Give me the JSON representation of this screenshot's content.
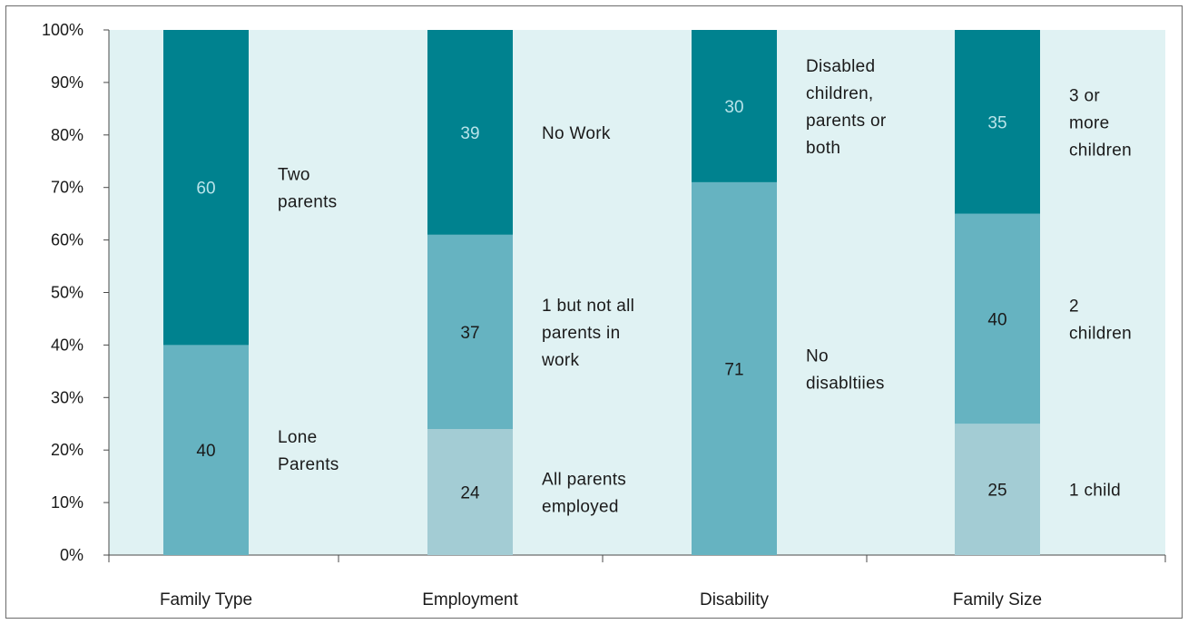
{
  "chart_data": {
    "type": "bar",
    "stacked": true,
    "categories": [
      "Family Type",
      "Employment",
      "Disability",
      "Family Size"
    ],
    "ylim": [
      0,
      100
    ],
    "yticks": [
      "0%",
      "10%",
      "20%",
      "30%",
      "40%",
      "50%",
      "60%",
      "70%",
      "80%",
      "90%",
      "100%"
    ],
    "grid": false,
    "colors": {
      "plot_bg": "#e0f2f3",
      "dark": "#00828f",
      "mid": "#66b3c1",
      "light": "#a3ccd4",
      "dark_value_text": "#b9e4ea",
      "value_text": "#1a1a1a"
    },
    "stacks": [
      {
        "category": "Family Type",
        "segments": [
          {
            "value": 40,
            "label": [
              "Lone",
              "Parents"
            ],
            "shade": "mid"
          },
          {
            "value": 60,
            "label": [
              "Two",
              "parents"
            ],
            "shade": "dark"
          }
        ]
      },
      {
        "category": "Employment",
        "segments": [
          {
            "value": 24,
            "label": [
              "All parents",
              "employed"
            ],
            "shade": "light"
          },
          {
            "value": 37,
            "label": [
              "1 but not all",
              "parents in",
              "work"
            ],
            "shade": "mid"
          },
          {
            "value": 39,
            "label": [
              "No Work"
            ],
            "shade": "dark"
          }
        ]
      },
      {
        "category": "Disability",
        "segments": [
          {
            "value": 71,
            "label": [
              "No",
              "disabltiies"
            ],
            "shade": "mid"
          },
          {
            "value": 30,
            "label": [
              "Disabled",
              "children,",
              "parents or",
              "both"
            ],
            "shade": "dark"
          }
        ]
      },
      {
        "category": "Family Size",
        "segments": [
          {
            "value": 25,
            "label": [
              "1 child"
            ],
            "shade": "light"
          },
          {
            "value": 40,
            "label": [
              "2",
              "children"
            ],
            "shade": "mid"
          },
          {
            "value": 35,
            "label": [
              "3 or",
              "more",
              "children"
            ],
            "shade": "dark"
          }
        ]
      }
    ]
  }
}
